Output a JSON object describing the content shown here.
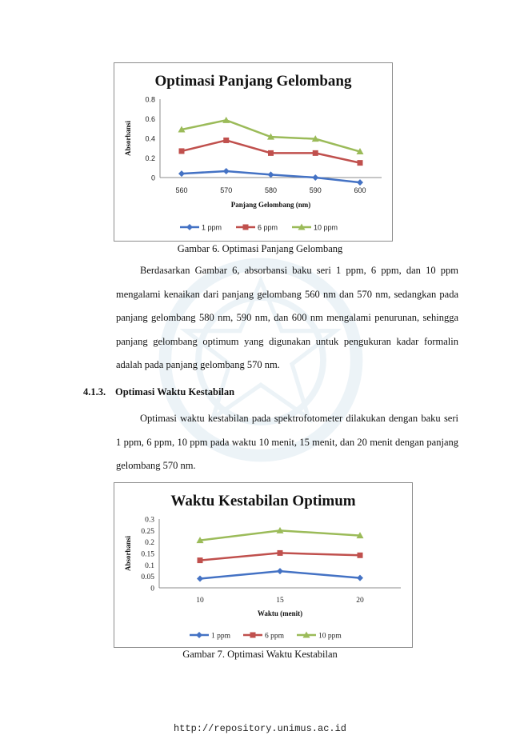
{
  "figure1": {
    "caption": "Gambar 6. Optimasi Panjang Gelombang",
    "chart_data": {
      "type": "line",
      "title": "Optimasi Panjang Gelombang",
      "xlabel": "Panjang Gelombang (nm)",
      "ylabel": "Absorbansi",
      "categories": [
        "560",
        "570",
        "580",
        "590",
        "600"
      ],
      "yticks": [
        "0",
        "0.2",
        "0.4",
        "0.6",
        "0.8"
      ],
      "ylim": [
        0,
        0.8
      ],
      "legend_position": "bottom",
      "series": [
        {
          "name": "1 ppm",
          "color": "#4472c4",
          "marker": "diamond",
          "values": [
            0.04,
            0.065,
            0.03,
            0.0,
            -0.05
          ]
        },
        {
          "name": "6 ppm",
          "color": "#c0504d",
          "marker": "square",
          "values": [
            0.27,
            0.38,
            0.25,
            0.25,
            0.15
          ]
        },
        {
          "name": "10 ppm",
          "color": "#9bbb59",
          "marker": "triangle",
          "values": [
            0.49,
            0.585,
            0.415,
            0.395,
            0.265
          ]
        }
      ]
    }
  },
  "figure2": {
    "caption": "Gambar 7. Optimasi Waktu Kestabilan",
    "chart_data": {
      "type": "line",
      "title": "Waktu Kestabilan Optimum",
      "xlabel": "Waktu (menit)",
      "ylabel": "Absorbansi",
      "categories": [
        "10",
        "15",
        "20"
      ],
      "yticks": [
        "0",
        "0.05",
        "0.1",
        "0.15",
        "0.2",
        "0.25",
        "0.3"
      ],
      "ylim": [
        0,
        0.3
      ],
      "legend_position": "bottom",
      "series": [
        {
          "name": "1 ppm",
          "color": "#4472c4",
          "marker": "diamond",
          "values": [
            0.04,
            0.073,
            0.043
          ]
        },
        {
          "name": "6 ppm",
          "color": "#c0504d",
          "marker": "square",
          "values": [
            0.12,
            0.152,
            0.142
          ]
        },
        {
          "name": "10 ppm",
          "color": "#9bbb59",
          "marker": "triangle",
          "values": [
            0.207,
            0.25,
            0.228
          ]
        }
      ]
    }
  },
  "paragraph1": "Berdasarkan Gambar 6, absorbansi baku seri 1 ppm, 6 ppm, dan 10 ppm mengalami kenaikan dari panjang gelombang 560 nm dan 570 nm, sedangkan pada panjang gelombang 580 nm, 590 nm, dan 600 nm mengalami penurunan, sehingga panjang gelombang optimum yang digunakan untuk pengukuran kadar formalin adalah pada panjang gelombang  570 nm.",
  "section": {
    "number": "4.1.3.",
    "title": "Optimasi Waktu Kestabilan"
  },
  "paragraph2": "Optimasi waktu kestabilan pada spektrofotometer dilakukan dengan baku seri 1 ppm, 6 ppm, 10 ppm pada waktu 10 menit, 15 menit, dan 20 menit dengan panjang gelombang 570 nm.",
  "footer": "http://repository.unimus.ac.id"
}
